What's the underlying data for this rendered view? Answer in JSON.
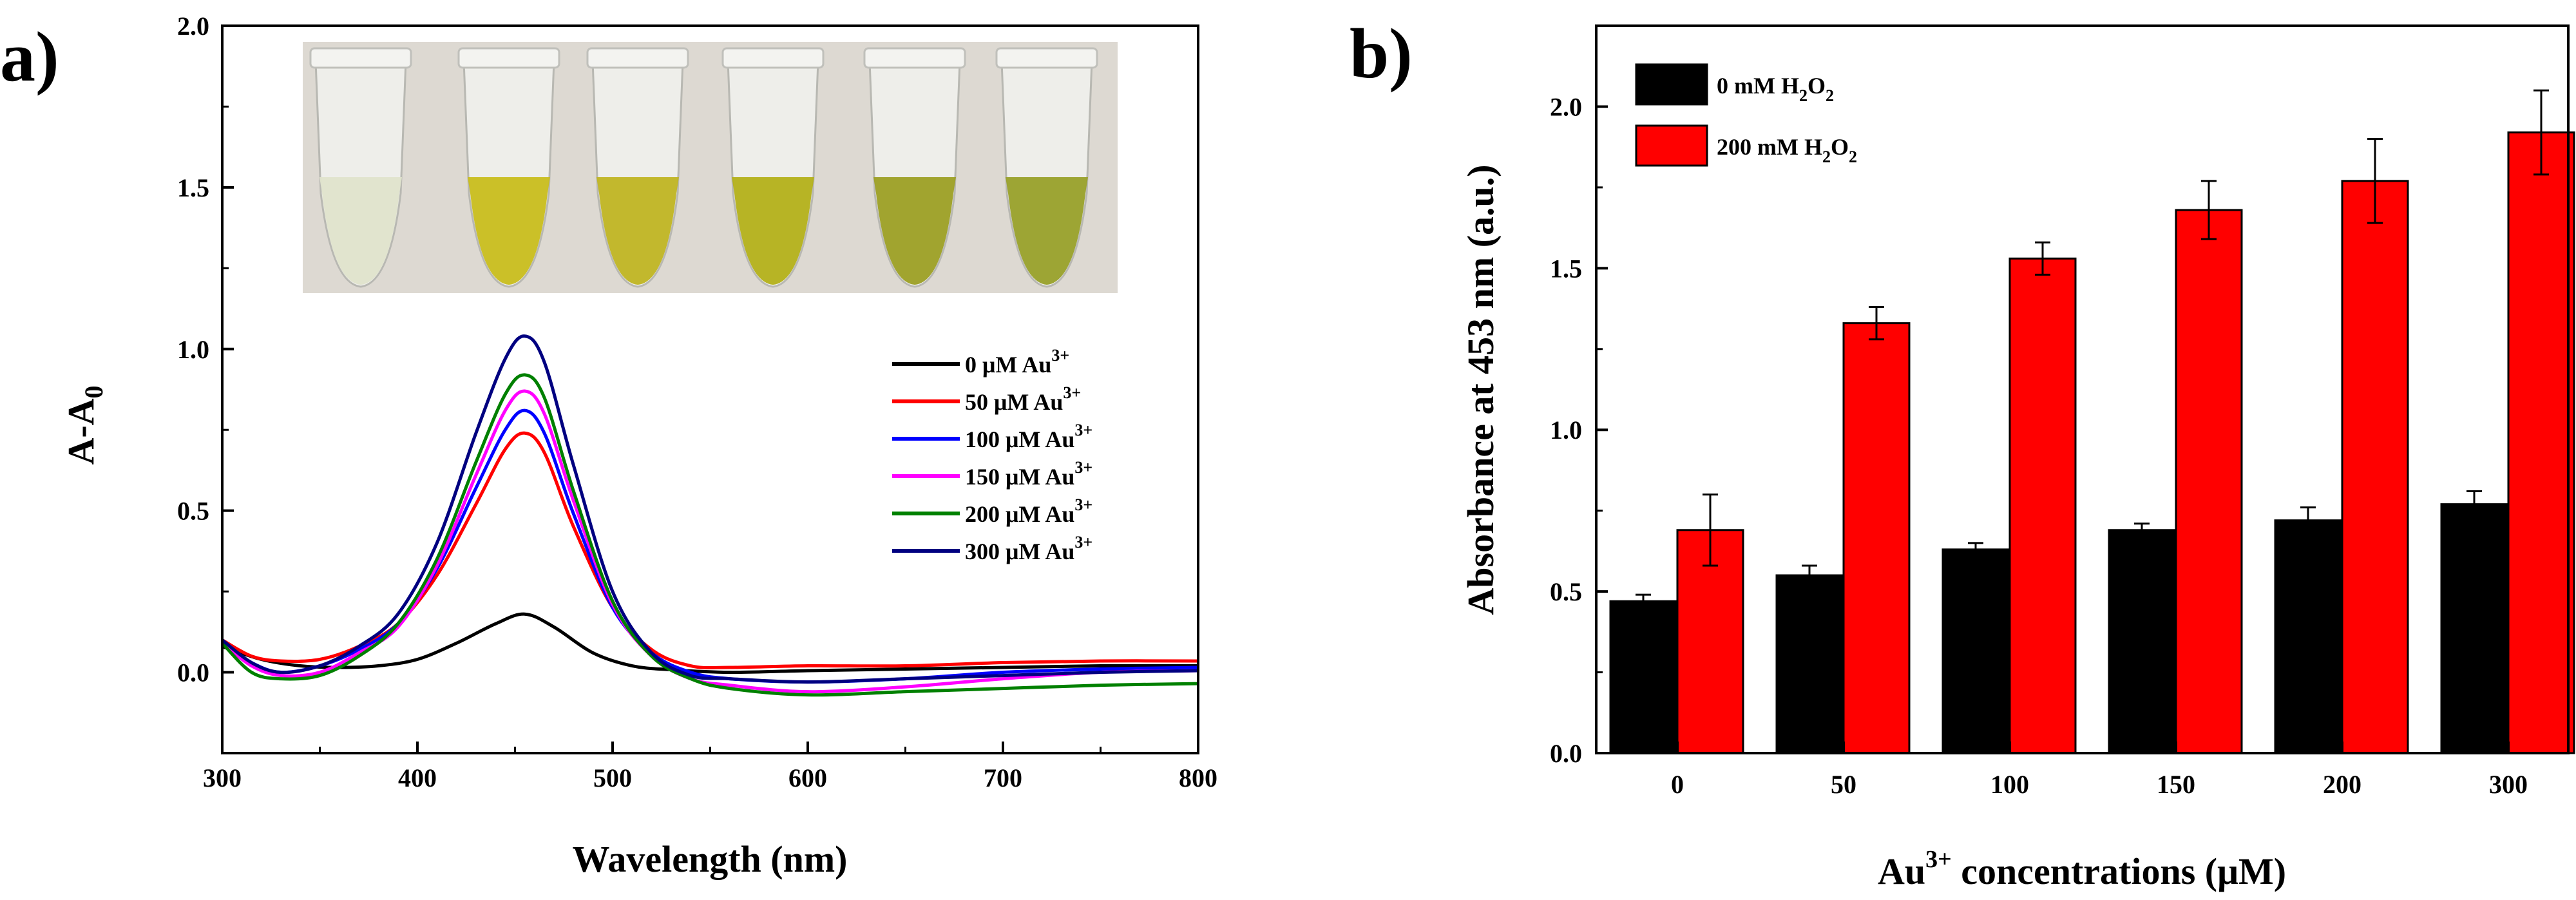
{
  "figure": {
    "panel_a_label": "a)",
    "panel_b_label": "b)"
  },
  "chart_data": [
    {
      "type": "line",
      "panel": "a",
      "title": "",
      "xlabel": "Wavelength (nm)",
      "ylabel": "A-A",
      "ylabel_sub": "0",
      "xlim": [
        300,
        800
      ],
      "ylim": [
        -0.25,
        2.0
      ],
      "xticks": [
        300,
        400,
        500,
        600,
        700,
        800
      ],
      "yticks": [
        0.0,
        0.5,
        1.0,
        1.5,
        2.0
      ],
      "ytick_labels": [
        "0.0",
        "0.5",
        "1.0",
        "1.5",
        "2.0"
      ],
      "legend_position": "middle-right",
      "inset_photo": {
        "description": "six reaction tubes with increasingly yellow-green solutions",
        "tube_count": 6
      },
      "series": [
        {
          "name": "0 μM Au",
          "sup": "3+",
          "color": "#000000",
          "points": [
            [
              300,
              0.08
            ],
            [
              320,
              0.04
            ],
            [
              340,
              0.02
            ],
            [
              360,
              0.015
            ],
            [
              380,
              0.02
            ],
            [
              400,
              0.04
            ],
            [
              420,
              0.09
            ],
            [
              440,
              0.15
            ],
            [
              455,
              0.18
            ],
            [
              470,
              0.14
            ],
            [
              490,
              0.06
            ],
            [
              510,
              0.02
            ],
            [
              530,
              0.008
            ],
            [
              560,
              0.0
            ],
            [
              600,
              0.005
            ],
            [
              650,
              0.01
            ],
            [
              700,
              0.015
            ],
            [
              750,
              0.02
            ],
            [
              800,
              0.02
            ]
          ]
        },
        {
          "name": "50 μM Au",
          "sup": "3+",
          "color": "#ff0000",
          "points": [
            [
              300,
              0.1
            ],
            [
              315,
              0.05
            ],
            [
              330,
              0.035
            ],
            [
              350,
              0.04
            ],
            [
              370,
              0.08
            ],
            [
              390,
              0.15
            ],
            [
              410,
              0.3
            ],
            [
              430,
              0.52
            ],
            [
              445,
              0.69
            ],
            [
              455,
              0.74
            ],
            [
              465,
              0.68
            ],
            [
              480,
              0.45
            ],
            [
              500,
              0.2
            ],
            [
              520,
              0.07
            ],
            [
              540,
              0.02
            ],
            [
              560,
              0.015
            ],
            [
              600,
              0.02
            ],
            [
              650,
              0.02
            ],
            [
              700,
              0.03
            ],
            [
              750,
              0.035
            ],
            [
              800,
              0.035
            ]
          ]
        },
        {
          "name": "100 μM Au",
          "sup": "3+",
          "color": "#0000ff",
          "points": [
            [
              300,
              0.09
            ],
            [
              315,
              0.03
            ],
            [
              330,
              0.0
            ],
            [
              350,
              0.02
            ],
            [
              370,
              0.07
            ],
            [
              390,
              0.15
            ],
            [
              410,
              0.32
            ],
            [
              430,
              0.57
            ],
            [
              445,
              0.75
            ],
            [
              455,
              0.81
            ],
            [
              465,
              0.74
            ],
            [
              480,
              0.49
            ],
            [
              500,
              0.2
            ],
            [
              520,
              0.06
            ],
            [
              540,
              0.0
            ],
            [
              560,
              -0.02
            ],
            [
              600,
              -0.03
            ],
            [
              650,
              -0.02
            ],
            [
              700,
              0.0
            ],
            [
              750,
              0.01
            ],
            [
              800,
              0.015
            ]
          ]
        },
        {
          "name": "150 μM Au",
          "sup": "3+",
          "color": "#ff00ff",
          "points": [
            [
              300,
              0.09
            ],
            [
              315,
              0.02
            ],
            [
              330,
              -0.01
            ],
            [
              350,
              0.0
            ],
            [
              370,
              0.06
            ],
            [
              390,
              0.14
            ],
            [
              410,
              0.33
            ],
            [
              430,
              0.61
            ],
            [
              445,
              0.81
            ],
            [
              455,
              0.87
            ],
            [
              465,
              0.8
            ],
            [
              480,
              0.53
            ],
            [
              500,
              0.21
            ],
            [
              520,
              0.05
            ],
            [
              540,
              -0.02
            ],
            [
              560,
              -0.04
            ],
            [
              600,
              -0.06
            ],
            [
              650,
              -0.045
            ],
            [
              700,
              -0.02
            ],
            [
              750,
              0.0
            ],
            [
              800,
              0.005
            ]
          ]
        },
        {
          "name": "200 μM Au",
          "sup": "3+",
          "color": "#008000",
          "points": [
            [
              300,
              0.09
            ],
            [
              315,
              0.0
            ],
            [
              330,
              -0.02
            ],
            [
              350,
              -0.01
            ],
            [
              370,
              0.05
            ],
            [
              390,
              0.15
            ],
            [
              410,
              0.35
            ],
            [
              430,
              0.65
            ],
            [
              445,
              0.86
            ],
            [
              455,
              0.92
            ],
            [
              465,
              0.85
            ],
            [
              480,
              0.56
            ],
            [
              500,
              0.22
            ],
            [
              520,
              0.05
            ],
            [
              540,
              -0.02
            ],
            [
              560,
              -0.05
            ],
            [
              600,
              -0.07
            ],
            [
              650,
              -0.06
            ],
            [
              700,
              -0.05
            ],
            [
              750,
              -0.04
            ],
            [
              800,
              -0.035
            ]
          ]
        },
        {
          "name": "300 μM Au",
          "sup": "3+",
          "color": "#000080",
          "points": [
            [
              300,
              0.1
            ],
            [
              315,
              0.03
            ],
            [
              330,
              0.0
            ],
            [
              350,
              0.02
            ],
            [
              370,
              0.08
            ],
            [
              390,
              0.18
            ],
            [
              410,
              0.4
            ],
            [
              430,
              0.74
            ],
            [
              445,
              0.97
            ],
            [
              455,
              1.04
            ],
            [
              465,
              0.96
            ],
            [
              480,
              0.64
            ],
            [
              500,
              0.25
            ],
            [
              520,
              0.06
            ],
            [
              540,
              -0.01
            ],
            [
              560,
              -0.02
            ],
            [
              600,
              -0.03
            ],
            [
              650,
              -0.02
            ],
            [
              700,
              -0.01
            ],
            [
              750,
              0.0
            ],
            [
              800,
              0.005
            ]
          ]
        }
      ]
    },
    {
      "type": "bar",
      "panel": "b",
      "title": "",
      "xlabel_pre": "Au",
      "xlabel_sup": "3+",
      "xlabel_post": " concentrations (μM)",
      "ylabel": "Absorbance at 453 nm (a.u.)",
      "ylim": [
        0.0,
        2.25
      ],
      "yticks": [
        0.0,
        0.5,
        1.0,
        1.5,
        2.0
      ],
      "ytick_labels": [
        "0.0",
        "0.5",
        "1.0",
        "1.5",
        "2.0"
      ],
      "legend_position": "top-left",
      "categories": [
        "0",
        "50",
        "100",
        "150",
        "200",
        "300"
      ],
      "series": [
        {
          "name_pre": "0 mM  H",
          "name_sub1": "2",
          "name_mid": "O",
          "name_sub2": "2",
          "color": "#000000",
          "values": [
            0.47,
            0.55,
            0.63,
            0.69,
            0.72,
            0.77
          ],
          "errors": [
            0.02,
            0.03,
            0.02,
            0.02,
            0.04,
            0.04
          ]
        },
        {
          "name_pre": "200 mM  H",
          "name_sub1": "2",
          "name_mid": "O",
          "name_sub2": "2",
          "color": "#ff0000",
          "values": [
            0.69,
            1.33,
            1.53,
            1.68,
            1.77,
            1.92
          ],
          "errors": [
            0.11,
            0.05,
            0.05,
            0.09,
            0.13,
            0.13
          ]
        }
      ]
    }
  ]
}
